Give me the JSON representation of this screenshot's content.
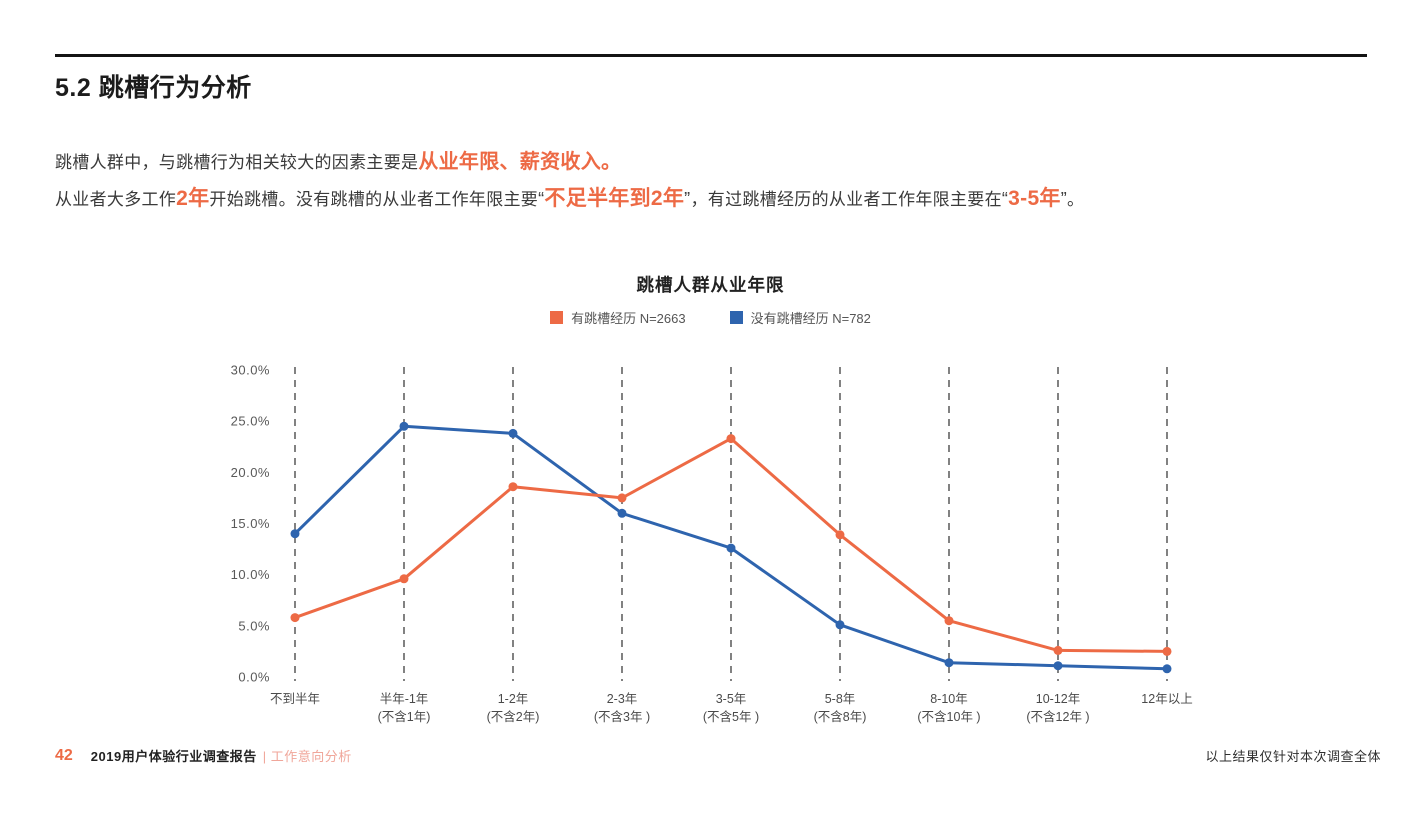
{
  "header": {
    "section_title": "5.2 跳槽行为分析"
  },
  "intro": {
    "l1_normal": "跳槽人群中，与跳槽行为相关较大的因素主要是",
    "l1_highlight": "从业年限、薪资收入。",
    "l2_t1": "从业者大多工作",
    "l2_h1": "2年",
    "l2_t2": "开始跳槽。没有跳槽的从业者工作年限主要",
    "l2_q1": "“",
    "l2_h2": "不足半年到2年",
    "l2_q2": "”",
    "l2_t3": "，有过跳槽经历的从业者工作年限主要在",
    "l2_q3": "“",
    "l2_h3": "3-5年",
    "l2_q4": "”",
    "l2_t4": "。"
  },
  "chart_data": {
    "type": "line",
    "title": "跳槽人群从业年限",
    "categories": [
      [
        "不到半年"
      ],
      [
        "半年-1年",
        "(不含1年)"
      ],
      [
        "1-2年",
        "(不含2年)"
      ],
      [
        "2-3年",
        "(不含3年 )"
      ],
      [
        "3-5年",
        "(不含5年 )"
      ],
      [
        "5-8年",
        "(不含8年)"
      ],
      [
        "8-10年",
        "(不含10年 )"
      ],
      [
        "10-12年",
        "(不含12年 )"
      ],
      [
        "12年以上"
      ]
    ],
    "series": [
      {
        "name": "有跳槽经历  N=2663",
        "color": "#ED6A45",
        "values": [
          5.8,
          9.6,
          18.6,
          17.5,
          23.3,
          13.9,
          5.5,
          2.6,
          2.5
        ]
      },
      {
        "name": "没有跳槽经历  N=782",
        "color": "#2E64AE",
        "values": [
          14.0,
          24.5,
          23.8,
          16.0,
          12.6,
          5.1,
          1.4,
          1.1,
          0.8
        ]
      }
    ],
    "ylim": [
      0,
      30
    ],
    "ytick_step": 5,
    "ytick_suffix": "%",
    "grid": "vertical-dashed",
    "legend_position": "top-center",
    "xlabel": "",
    "ylabel": ""
  },
  "footer": {
    "page_number": "42",
    "report_title": "2019用户体验行业调查报告",
    "section_label": "| 工作意向分析",
    "right_note": "以上结果仅针对本次调查全体"
  }
}
